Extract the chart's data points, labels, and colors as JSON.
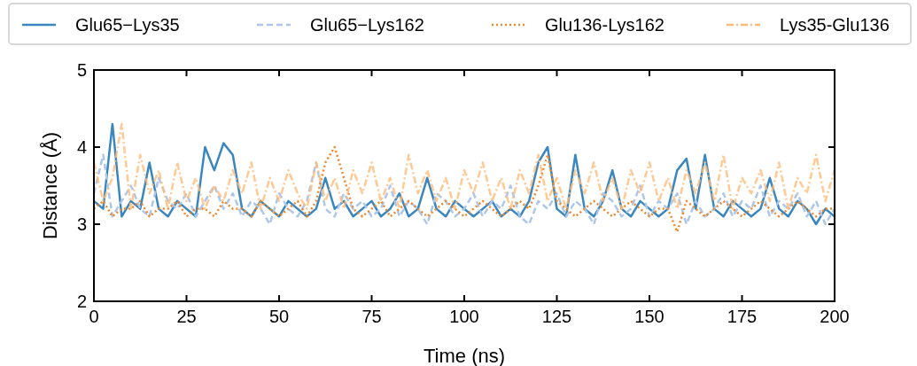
{
  "chart_data": {
    "type": "line",
    "xlabel": "Time (ns)",
    "ylabel": "Distance (Å)",
    "xlim": [
      0,
      200
    ],
    "ylim": [
      2,
      5
    ],
    "xticks": [
      0,
      25,
      50,
      75,
      100,
      125,
      150,
      175,
      200
    ],
    "yticks": [
      2,
      3,
      4,
      5
    ],
    "legend": "top",
    "grid": false,
    "x": [
      0,
      2.5,
      5,
      7.5,
      10,
      12.5,
      15,
      17.5,
      20,
      22.5,
      25,
      27.5,
      30,
      32.5,
      35,
      37.5,
      40,
      42.5,
      45,
      47.5,
      50,
      52.5,
      55,
      57.5,
      60,
      62.5,
      65,
      67.5,
      70,
      72.5,
      75,
      77.5,
      80,
      82.5,
      85,
      87.5,
      90,
      92.5,
      95,
      97.5,
      100,
      102.5,
      105,
      107.5,
      110,
      112.5,
      115,
      117.5,
      120,
      122.5,
      125,
      127.5,
      130,
      132.5,
      135,
      137.5,
      140,
      142.5,
      145,
      147.5,
      150,
      152.5,
      155,
      157.5,
      160,
      162.5,
      165,
      167.5,
      170,
      172.5,
      175,
      177.5,
      180,
      182.5,
      185,
      187.5,
      190,
      192.5,
      195,
      197.5,
      200
    ],
    "series": [
      {
        "name": "Glu65−Lys35",
        "color": "#3a87c0",
        "line_style": "solid",
        "values": [
          3.3,
          3.2,
          4.3,
          3.1,
          3.3,
          3.2,
          3.8,
          3.2,
          3.1,
          3.3,
          3.2,
          3.1,
          4.0,
          3.7,
          4.05,
          3.9,
          3.2,
          3.1,
          3.3,
          3.2,
          3.1,
          3.3,
          3.2,
          3.1,
          3.2,
          3.6,
          3.2,
          3.3,
          3.1,
          3.2,
          3.3,
          3.1,
          3.2,
          3.4,
          3.1,
          3.2,
          3.6,
          3.2,
          3.1,
          3.3,
          3.2,
          3.1,
          3.2,
          3.3,
          3.1,
          3.2,
          3.1,
          3.3,
          3.8,
          4.0,
          3.2,
          3.1,
          3.9,
          3.2,
          3.1,
          3.3,
          3.7,
          3.2,
          3.1,
          3.3,
          3.2,
          3.1,
          3.2,
          3.7,
          3.85,
          3.2,
          3.9,
          3.2,
          3.1,
          3.3,
          3.2,
          3.1,
          3.2,
          3.6,
          3.2,
          3.1,
          3.3,
          3.2,
          3.0,
          3.2,
          3.1
        ]
      },
      {
        "name": "Glu65−Lys162",
        "color": "#aec7e8",
        "line_style": "dashed",
        "values": [
          3.4,
          3.9,
          3.1,
          3.3,
          3.5,
          3.2,
          3.1,
          3.6,
          3.3,
          3.2,
          3.4,
          3.1,
          3.3,
          3.5,
          3.2,
          3.4,
          3.1,
          3.3,
          3.2,
          3.0,
          3.4,
          3.2,
          3.1,
          3.3,
          3.8,
          3.2,
          3.1,
          3.4,
          3.2,
          3.3,
          3.1,
          3.2,
          3.5,
          3.1,
          3.3,
          3.2,
          3.0,
          3.4,
          3.3,
          3.1,
          3.2,
          3.4,
          3.1,
          3.3,
          3.2,
          3.5,
          3.1,
          3.0,
          3.3,
          3.2,
          3.4,
          3.1,
          3.3,
          3.2,
          3.0,
          3.4,
          3.3,
          3.1,
          3.2,
          3.5,
          3.1,
          3.3,
          3.2,
          3.4,
          3.0,
          3.3,
          3.1,
          3.2,
          3.4,
          3.1,
          3.3,
          3.2,
          3.5,
          3.1,
          3.3,
          3.2,
          3.4,
          3.1,
          3.3,
          3.0,
          3.2
        ]
      },
      {
        "name": "Glu136-Lys162",
        "color": "#f0872a",
        "line_style": "dotted",
        "values": [
          3.2,
          3.3,
          3.1,
          3.2,
          3.2,
          3.3,
          3.1,
          3.2,
          3.2,
          3.3,
          3.1,
          3.2,
          3.2,
          3.1,
          3.3,
          3.2,
          3.2,
          3.1,
          3.3,
          3.2,
          3.1,
          3.2,
          3.3,
          3.1,
          3.3,
          3.8,
          4.0,
          3.6,
          3.2,
          3.1,
          3.2,
          3.3,
          3.1,
          3.2,
          3.3,
          3.2,
          3.1,
          3.2,
          3.3,
          3.2,
          3.1,
          3.2,
          3.3,
          3.2,
          3.1,
          3.2,
          3.3,
          3.2,
          3.5,
          3.9,
          3.3,
          3.2,
          3.1,
          3.2,
          3.3,
          3.2,
          3.1,
          3.2,
          3.3,
          3.2,
          3.1,
          3.2,
          3.2,
          2.9,
          3.3,
          3.2,
          3.1,
          3.2,
          3.3,
          3.2,
          3.1,
          3.2,
          3.3,
          3.2,
          3.1,
          3.2,
          3.3,
          3.2,
          3.1,
          3.2,
          3.2
        ]
      },
      {
        "name": "Lys35-Glu136",
        "color": "#ffbb78",
        "line_style": "dashdot",
        "values": [
          3.8,
          3.3,
          3.6,
          4.3,
          3.2,
          3.9,
          3.4,
          3.7,
          3.2,
          3.8,
          3.3,
          3.6,
          3.2,
          3.5,
          3.3,
          3.7,
          3.4,
          3.8,
          3.2,
          3.6,
          3.3,
          3.7,
          3.4,
          3.2,
          3.8,
          3.3,
          3.6,
          3.2,
          3.7,
          3.4,
          3.8,
          3.3,
          3.6,
          3.2,
          3.9,
          3.4,
          3.7,
          3.3,
          3.6,
          3.2,
          3.7,
          3.4,
          3.8,
          3.3,
          3.6,
          3.2,
          3.7,
          3.4,
          3.9,
          3.3,
          3.6,
          3.2,
          3.7,
          3.4,
          3.8,
          3.3,
          3.6,
          3.2,
          3.7,
          3.4,
          3.8,
          3.3,
          3.6,
          3.2,
          3.7,
          3.4,
          3.8,
          3.3,
          3.9,
          3.2,
          3.6,
          3.4,
          3.7,
          3.3,
          3.8,
          3.2,
          3.6,
          3.4,
          3.9,
          3.3,
          3.7
        ]
      }
    ]
  }
}
